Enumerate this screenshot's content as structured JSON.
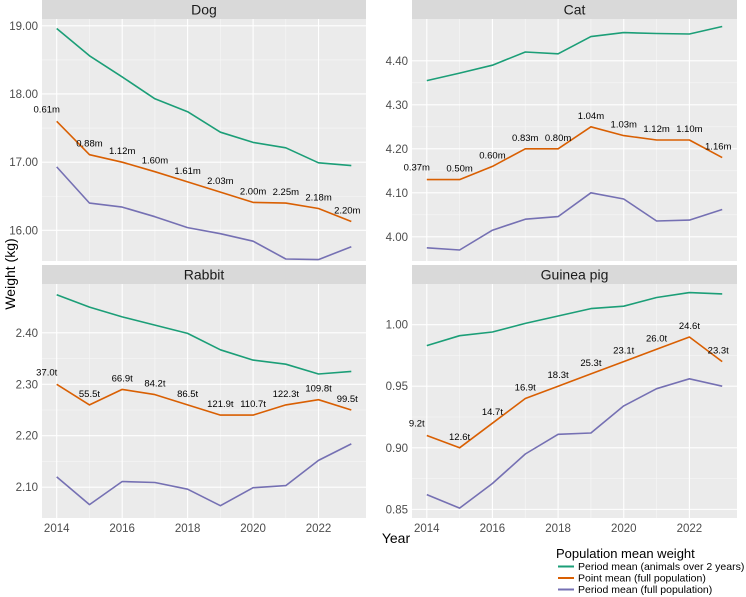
{
  "chart_data": {
    "type": "line",
    "xlabel": "Year",
    "ylabel": "Weight (kg)",
    "x_ticks": [
      "2014",
      "2016",
      "2018",
      "2020",
      "2022"
    ],
    "years": [
      2014,
      2015,
      2016,
      2017,
      2018,
      2019,
      2020,
      2021,
      2022,
      2023
    ],
    "legend": {
      "title": "Population mean weight",
      "position": "bottom-right",
      "entries": [
        {
          "key": "over2",
          "label": "Period mean (animals over 2 years)",
          "color": "#1b9e77"
        },
        {
          "key": "point",
          "label": "Point mean (full population)",
          "color": "#d95f02"
        },
        {
          "key": "full",
          "label": "Period mean (full population)",
          "color": "#7570b3"
        }
      ]
    },
    "panels": [
      {
        "title": "Dog",
        "ylim": [
          15.55,
          19.1
        ],
        "y_ticks": [
          16.0,
          17.0,
          18.0,
          19.0
        ],
        "y_tick_labels": [
          "16.00",
          "17.00",
          "18.00",
          "19.00"
        ],
        "series": {
          "over2": [
            18.96,
            18.56,
            18.25,
            17.93,
            17.74,
            17.44,
            17.29,
            17.21,
            16.99,
            16.95
          ],
          "point": [
            17.6,
            17.11,
            17.0,
            16.86,
            16.71,
            16.56,
            16.41,
            16.4,
            16.32,
            16.13
          ],
          "full": [
            16.93,
            16.4,
            16.34,
            16.2,
            16.04,
            15.95,
            15.84,
            15.58,
            15.57,
            15.76
          ]
        },
        "point_labels": [
          "0.61m",
          "0.88m",
          "1.12m",
          "1.60m",
          "1.61m",
          "2.03m",
          "2.00m",
          "2.25m",
          "2.18m",
          "2.20m"
        ]
      },
      {
        "title": "Cat",
        "ylim": [
          3.945,
          4.495
        ],
        "y_ticks": [
          4.0,
          4.1,
          4.2,
          4.3,
          4.4
        ],
        "y_tick_labels": [
          "4.00",
          "4.10",
          "4.20",
          "4.30",
          "4.40"
        ],
        "series": {
          "over2": [
            4.355,
            4.372,
            4.39,
            4.42,
            4.416,
            4.455,
            4.464,
            4.462,
            4.461,
            4.478
          ],
          "point": [
            4.13,
            4.13,
            4.16,
            4.2,
            4.2,
            4.25,
            4.23,
            4.22,
            4.22,
            4.18
          ],
          "full": [
            3.975,
            3.97,
            4.015,
            4.04,
            4.046,
            4.1,
            4.086,
            4.036,
            4.038,
            4.062
          ]
        },
        "point_labels": [
          "0.37m",
          "0.50m",
          "0.60m",
          "0.83m",
          "0.80m",
          "1.04m",
          "1.03m",
          "1.12m",
          "1.10m",
          "1.16m"
        ]
      },
      {
        "title": "Rabbit",
        "ylim": [
          2.04,
          2.495
        ],
        "y_ticks": [
          2.1,
          2.2,
          2.3,
          2.4
        ],
        "y_tick_labels": [
          "2.10",
          "2.20",
          "2.30",
          "2.40"
        ],
        "series": {
          "over2": [
            2.474,
            2.45,
            2.431,
            2.415,
            2.399,
            2.367,
            2.347,
            2.339,
            2.32,
            2.325
          ],
          "point": [
            2.3,
            2.26,
            2.29,
            2.28,
            2.26,
            2.24,
            2.24,
            2.26,
            2.27,
            2.25
          ],
          "full": [
            2.12,
            2.066,
            2.111,
            2.109,
            2.096,
            2.064,
            2.099,
            2.103,
            2.152,
            2.184
          ]
        },
        "point_labels": [
          "37.0t",
          "55.5t",
          "66.9t",
          "84.2t",
          "86.5t",
          "121.9t",
          "110.7t",
          "122.3t",
          "109.8t",
          "99.5t"
        ]
      },
      {
        "title": "Guinea pig",
        "ylim": [
          0.843,
          1.033
        ],
        "y_ticks": [
          0.85,
          0.9,
          0.95,
          1.0
        ],
        "y_tick_labels": [
          "0.85",
          "0.90",
          "0.95",
          "1.00"
        ],
        "series": {
          "over2": [
            0.983,
            0.991,
            0.994,
            1.001,
            1.007,
            1.013,
            1.015,
            1.022,
            1.026,
            1.025
          ],
          "point": [
            0.91,
            0.9,
            0.92,
            0.94,
            0.95,
            0.96,
            0.97,
            0.98,
            0.99,
            0.97
          ],
          "full": [
            0.862,
            0.851,
            0.871,
            0.895,
            0.911,
            0.912,
            0.934,
            0.948,
            0.956,
            0.95
          ]
        },
        "point_labels": [
          "9.2t",
          "12.6t",
          "14.7t",
          "16.9t",
          "18.3t",
          "25.3t",
          "23.1t",
          "26.0t",
          "24.6t",
          "23.3t"
        ]
      }
    ]
  }
}
